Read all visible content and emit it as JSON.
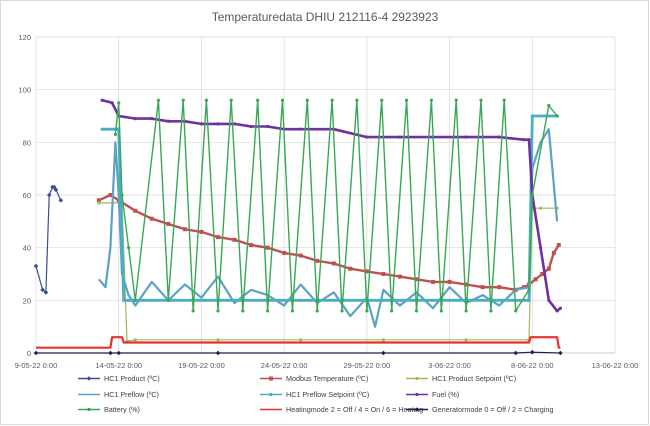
{
  "chart_data": {
    "type": "line",
    "title": "Temperaturedata DHIU 212116-4 2923923",
    "xlabel": "",
    "ylabel": "",
    "ylim": [
      0,
      120
    ],
    "yticks": [
      0,
      20,
      40,
      60,
      80,
      100,
      120
    ],
    "xlim_days": [
      "2022-05-09",
      "2022-06-13"
    ],
    "xticks": [
      "9-05-22 0:00",
      "14-05-22 0:00",
      "19-05-22 0:00",
      "24-05-22 0:00",
      "29-05-22 0:00",
      "3-06-22 0:00",
      "8-06-22 0:00",
      "13-06-22 0:00"
    ],
    "grid": true,
    "legend_position": "bottom",
    "series": [
      {
        "name": "HC1 Product (ºC)",
        "color": "#3c4e8c",
        "marker": "diamond",
        "x": [
          9.0,
          9.4,
          9.6,
          9.8,
          10.0,
          10.1,
          10.2,
          10.5
        ],
        "y": [
          33,
          24,
          23,
          60,
          63,
          63,
          62,
          58
        ]
      },
      {
        "name": "Modbus Temperature (ºC)",
        "color": "#c0504d",
        "marker": "square",
        "x": [
          12.8,
          13.5,
          14.0,
          15.0,
          16.0,
          17.0,
          18.0,
          19.0,
          20.0,
          21.0,
          22.0,
          23.0,
          24.0,
          25.0,
          26.0,
          27.0,
          28.0,
          29.0,
          30.0,
          31.0,
          32.0,
          33.0,
          34.0,
          35.0,
          36.0,
          37.0,
          38.0,
          38.5,
          38.8,
          39.2,
          39.6,
          40.0,
          40.3,
          40.6
        ],
        "y": [
          58,
          60,
          58,
          54,
          51,
          49,
          47,
          46,
          44,
          43,
          41,
          40,
          38,
          37,
          35,
          34,
          32,
          31,
          30,
          29,
          28,
          27,
          27,
          26,
          25,
          25,
          24,
          25,
          26,
          28,
          30,
          32,
          38,
          41
        ]
      },
      {
        "name": "HC1 Product Setpoint (ºC)",
        "color": "#9bbb59",
        "marker": "circle",
        "x": [
          12.8,
          14.2,
          14.5,
          15.0,
          20.0,
          25.0,
          30.0,
          35.0,
          38.8,
          39.0,
          39.5,
          40.5
        ],
        "y": [
          57,
          57,
          4.5,
          5,
          5,
          5,
          5,
          5,
          5,
          55,
          55,
          55
        ]
      },
      {
        "name": "HC1 Preflow (ºC)",
        "color": "#5ba3c0",
        "marker": "none",
        "x": [
          12.8,
          13.2,
          13.5,
          13.8,
          14.0,
          14.2,
          14.6,
          15.0,
          16.0,
          17.0,
          18.0,
          19.0,
          20.0,
          21.0,
          22.0,
          23.0,
          24.0,
          25.0,
          26.0,
          27.0,
          28.0,
          29.0,
          29.5,
          30.0,
          31.0,
          32.0,
          33.0,
          34.0,
          35.0,
          36.0,
          37.0,
          38.0,
          38.8,
          39.0,
          39.5,
          40.0,
          40.5
        ],
        "y": [
          28,
          25,
          40,
          80,
          60,
          30,
          22,
          18,
          27,
          20,
          26,
          21,
          29,
          19,
          24,
          22,
          18,
          26,
          19,
          23,
          14,
          21,
          10,
          24,
          18,
          23,
          17,
          25,
          19,
          22,
          18,
          24,
          25,
          70,
          80,
          85,
          50
        ]
      },
      {
        "name": "HC1 Preflow Setpoint (ºC)",
        "color": "#4bacc6",
        "marker": "circle",
        "x": [
          13.0,
          14.0,
          14.3,
          14.6,
          15.0,
          20.0,
          25.0,
          30.0,
          35.0,
          38.8,
          39.0,
          40.5
        ],
        "y": [
          85,
          85,
          20,
          20,
          20,
          20,
          20,
          20,
          20,
          20,
          90,
          90
        ]
      },
      {
        "name": "Fuel (%)",
        "color": "#7030a0",
        "marker": "circle",
        "x": [
          13.0,
          13.6,
          14.0,
          15.0,
          16.0,
          17.0,
          18.0,
          19.0,
          20.0,
          21.0,
          22.0,
          23.0,
          24.0,
          25.0,
          27.0,
          29.0,
          31.0,
          33.0,
          35.0,
          37.0,
          38.5,
          38.8,
          39.0,
          39.5,
          40.0,
          40.5,
          40.7
        ],
        "y": [
          96,
          95,
          90,
          89,
          89,
          88,
          88,
          87,
          87,
          87,
          86,
          86,
          85,
          85,
          85,
          82,
          82,
          82,
          82,
          82,
          81,
          81,
          60,
          40,
          20,
          16,
          17
        ]
      },
      {
        "name": "Battery (%)",
        "color": "#3aa757",
        "marker": "circle",
        "x": [
          13.8,
          14.0,
          14.2,
          14.6,
          15.0,
          16.4,
          17.0,
          17.9,
          18.5,
          19.3,
          20.0,
          20.8,
          21.5,
          22.4,
          23.0,
          23.9,
          24.5,
          25.4,
          26.0,
          26.9,
          27.5,
          28.4,
          29.0,
          29.9,
          30.5,
          31.4,
          32.0,
          32.9,
          33.5,
          34.4,
          35.0,
          35.9,
          36.5,
          37.3,
          38.0,
          38.8,
          39.0,
          40.0,
          40.5
        ],
        "y": [
          83,
          95,
          60,
          40,
          20,
          96,
          20,
          96,
          16,
          96,
          16,
          96,
          16,
          96,
          16,
          96,
          16,
          96,
          16,
          96,
          16,
          96,
          16,
          96,
          16,
          96,
          16,
          96,
          16,
          96,
          16,
          96,
          16,
          96,
          16,
          24,
          60,
          94,
          90
        ]
      },
      {
        "name": "Heatingmode 2 = Off / 4 = On / 6 = Heating",
        "color": "#e8312a",
        "marker": "line",
        "x": [
          9.0,
          13.5,
          13.6,
          14.2,
          14.3,
          38.8,
          38.9,
          40.5,
          40.6,
          40.7
        ],
        "y": [
          2,
          2,
          6,
          6,
          4,
          4,
          6,
          6,
          2,
          2
        ]
      },
      {
        "name": "Generatormode 0 = Off / 2 = Charging",
        "color": "#1f1f4d",
        "marker": "diamond",
        "x": [
          9.0,
          13.5,
          14.0,
          20.0,
          30.0,
          38.0,
          39.0,
          40.7
        ],
        "y": [
          0,
          0,
          0,
          0,
          0,
          0,
          0.3,
          0
        ]
      }
    ]
  }
}
